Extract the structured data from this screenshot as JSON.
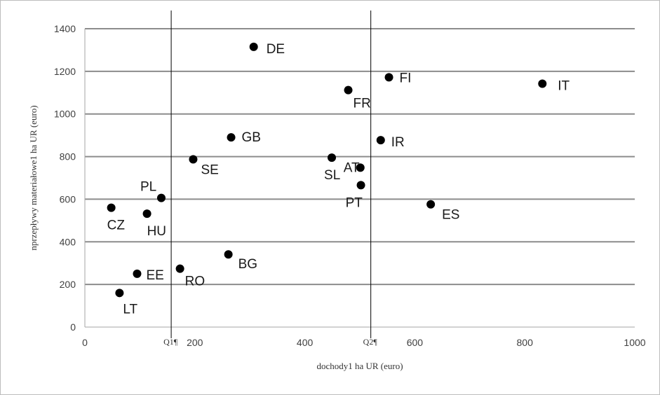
{
  "chart_data": {
    "type": "scatter",
    "xlabel": "dochody1 ha UR (euro)",
    "ylabel": "nprzepływy materiałowe1 ha UR (euro)",
    "xlim": [
      0,
      1000
    ],
    "ylim": [
      0,
      1400
    ],
    "x_ticks": [
      0,
      200,
      400,
      600,
      800,
      1000
    ],
    "y_ticks": [
      0,
      200,
      400,
      600,
      800,
      1000,
      1200,
      1400
    ],
    "grid": "horizontal",
    "colors": {
      "point": "#000000",
      "grid": "#8c8c8c",
      "axis": "#a6a6a6"
    },
    "quartile_lines": [
      {
        "label": "Q1¶",
        "x": 157
      },
      {
        "label": "Q2¶",
        "x": 520
      }
    ],
    "points": [
      {
        "label": "DE",
        "x": 307,
        "y": 1315
      },
      {
        "label": "FI",
        "x": 553,
        "y": 1172
      },
      {
        "label": "IT",
        "x": 832,
        "y": 1142
      },
      {
        "label": "FR",
        "x": 479,
        "y": 1112
      },
      {
        "label": "GB",
        "x": 266,
        "y": 890
      },
      {
        "label": "IR",
        "x": 538,
        "y": 877
      },
      {
        "label": "SE",
        "x": 197,
        "y": 787
      },
      {
        "label": "AT",
        "x": 501,
        "y": 748
      },
      {
        "label": "SL",
        "x": 449,
        "y": 795
      },
      {
        "label": "PT",
        "x": 502,
        "y": 666
      },
      {
        "label": "PL",
        "x": 139,
        "y": 606
      },
      {
        "label": "ES",
        "x": 629,
        "y": 576
      },
      {
        "label": "CZ",
        "x": 48,
        "y": 560
      },
      {
        "label": "HU",
        "x": 113,
        "y": 532
      },
      {
        "label": "BG",
        "x": 261,
        "y": 341
      },
      {
        "label": "RO",
        "x": 173,
        "y": 274
      },
      {
        "label": "EE",
        "x": 95,
        "y": 250
      },
      {
        "label": "LT",
        "x": 63,
        "y": 160
      }
    ]
  }
}
